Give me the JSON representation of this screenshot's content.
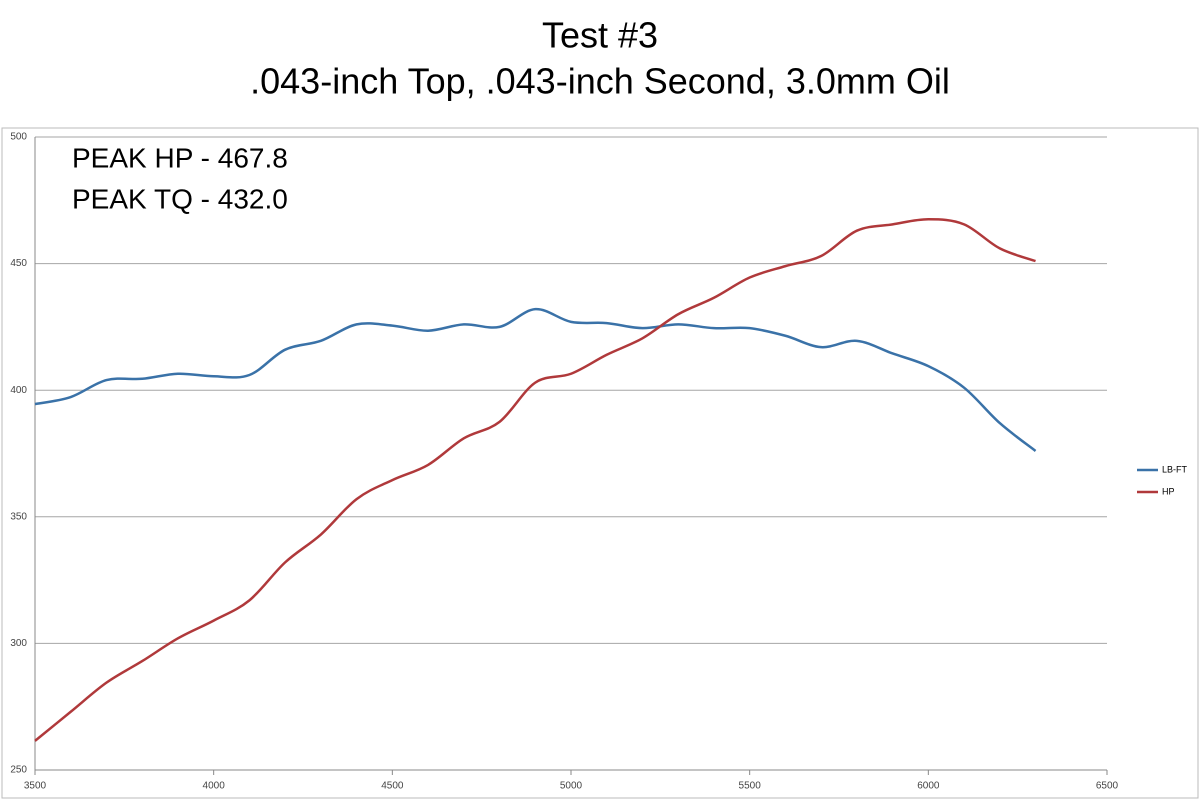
{
  "chart_data": {
    "type": "line",
    "title": "Test #3",
    "subtitle": ".043-inch Top, .043-inch Second, 3.0mm Oil",
    "annotations": [
      "PEAK HP - 467.8",
      "PEAK TQ - 432.0"
    ],
    "x": [
      3500,
      3600,
      3700,
      3800,
      3900,
      4000,
      4100,
      4200,
      4300,
      4400,
      4500,
      4600,
      4700,
      4800,
      4900,
      5000,
      5100,
      5200,
      5300,
      5400,
      5500,
      5600,
      5700,
      5800,
      5900,
      6000,
      6100,
      6200,
      6300
    ],
    "series": [
      {
        "name": "LB-FT",
        "color": "#3a72a8",
        "values": [
          394.5,
          397.3,
          404,
          404.5,
          406.5,
          405.5,
          406,
          416,
          419.5,
          426,
          425.5,
          423.5,
          426,
          425,
          432,
          427,
          426.5,
          424.5,
          426,
          424.5,
          424.5,
          421.5,
          417,
          419.5,
          414.5,
          409.5,
          401,
          387,
          376
        ]
      },
      {
        "name": "HP",
        "color": "#b0393b",
        "values": [
          261.5,
          273,
          284.5,
          293,
          302,
          309,
          317,
          332,
          343,
          357,
          364.5,
          370.5,
          381,
          387.5,
          403,
          406.5,
          414,
          420.5,
          430,
          436.5,
          444.5,
          449,
          453,
          463,
          465.5,
          467.5,
          465.5,
          456,
          451
        ]
      }
    ],
    "xlim": [
      3500,
      6500
    ],
    "xticks": [
      3500,
      4000,
      4500,
      5000,
      5500,
      6000,
      6500
    ],
    "ylim": [
      250,
      500
    ],
    "yticks": [
      250,
      300,
      350,
      400,
      450,
      500
    ],
    "grid": true,
    "legend": "right"
  }
}
